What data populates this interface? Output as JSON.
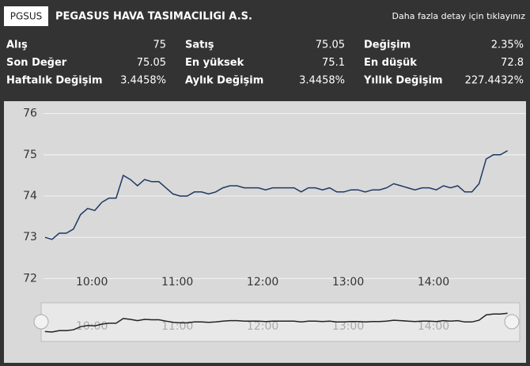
{
  "header": {
    "symbol": "PGSUS",
    "title": "PEGASUS HAVA TASIMACILIGI A.S.",
    "link": "Daha fazla detay için tıklayınız"
  },
  "stats": [
    [
      {
        "label": "Alış",
        "value": "75"
      },
      {
        "label": "Satış",
        "value": "75.05"
      },
      {
        "label": "Değişim",
        "value": "2.35%"
      }
    ],
    [
      {
        "label": "Son Değer",
        "value": "75.05"
      },
      {
        "label": "En yüksek",
        "value": "75.1"
      },
      {
        "label": "En düşük",
        "value": "72.8"
      }
    ],
    [
      {
        "label": "Haftalık Değişim",
        "value": "3.4458%"
      },
      {
        "label": "Aylık Değişim",
        "value": "3.4458%"
      },
      {
        "label": "Yıllık Değişim",
        "value": "227.4432%"
      }
    ]
  ],
  "chart_data": {
    "type": "line",
    "color": "#1f3864",
    "grid": true,
    "x": [
      "09:27",
      "09:32",
      "09:37",
      "09:42",
      "09:47",
      "09:52",
      "09:57",
      "10:02",
      "10:07",
      "10:12",
      "10:17",
      "10:22",
      "10:27",
      "10:32",
      "10:37",
      "10:42",
      "10:47",
      "10:52",
      "10:57",
      "11:02",
      "11:07",
      "11:12",
      "11:17",
      "11:22",
      "11:27",
      "11:32",
      "11:37",
      "11:42",
      "11:47",
      "11:52",
      "11:57",
      "12:02",
      "12:07",
      "12:12",
      "12:17",
      "12:22",
      "12:27",
      "12:32",
      "12:37",
      "12:42",
      "12:47",
      "12:52",
      "12:57",
      "13:02",
      "13:07",
      "13:12",
      "13:17",
      "13:22",
      "13:27",
      "13:32",
      "13:37",
      "13:42",
      "13:47",
      "13:52",
      "13:57",
      "14:02",
      "14:07",
      "14:12",
      "14:17",
      "14:22",
      "14:27",
      "14:32",
      "14:37",
      "14:42",
      "14:47",
      "14:52"
    ],
    "values": [
      73.0,
      72.95,
      73.1,
      73.1,
      73.2,
      73.55,
      73.7,
      73.65,
      73.85,
      73.95,
      73.95,
      74.5,
      74.4,
      74.25,
      74.4,
      74.35,
      74.35,
      74.2,
      74.05,
      74.0,
      74.0,
      74.1,
      74.1,
      74.05,
      74.1,
      74.2,
      74.25,
      74.25,
      74.2,
      74.2,
      74.2,
      74.15,
      74.2,
      74.2,
      74.2,
      74.2,
      74.1,
      74.2,
      74.2,
      74.15,
      74.2,
      74.1,
      74.1,
      74.15,
      74.15,
      74.1,
      74.15,
      74.15,
      74.2,
      74.3,
      74.25,
      74.2,
      74.15,
      74.2,
      74.2,
      74.15,
      74.25,
      74.2,
      74.25,
      74.1,
      74.1,
      74.3,
      74.9,
      75.0,
      75.0,
      75.1
    ],
    "xlim": [
      "09:26",
      "15:05"
    ],
    "xticks": [
      "10:00",
      "11:00",
      "12:00",
      "13:00",
      "14:00"
    ],
    "ylim": [
      71.95,
      76.3
    ],
    "yticks": [
      72,
      73,
      74,
      75,
      76
    ]
  }
}
